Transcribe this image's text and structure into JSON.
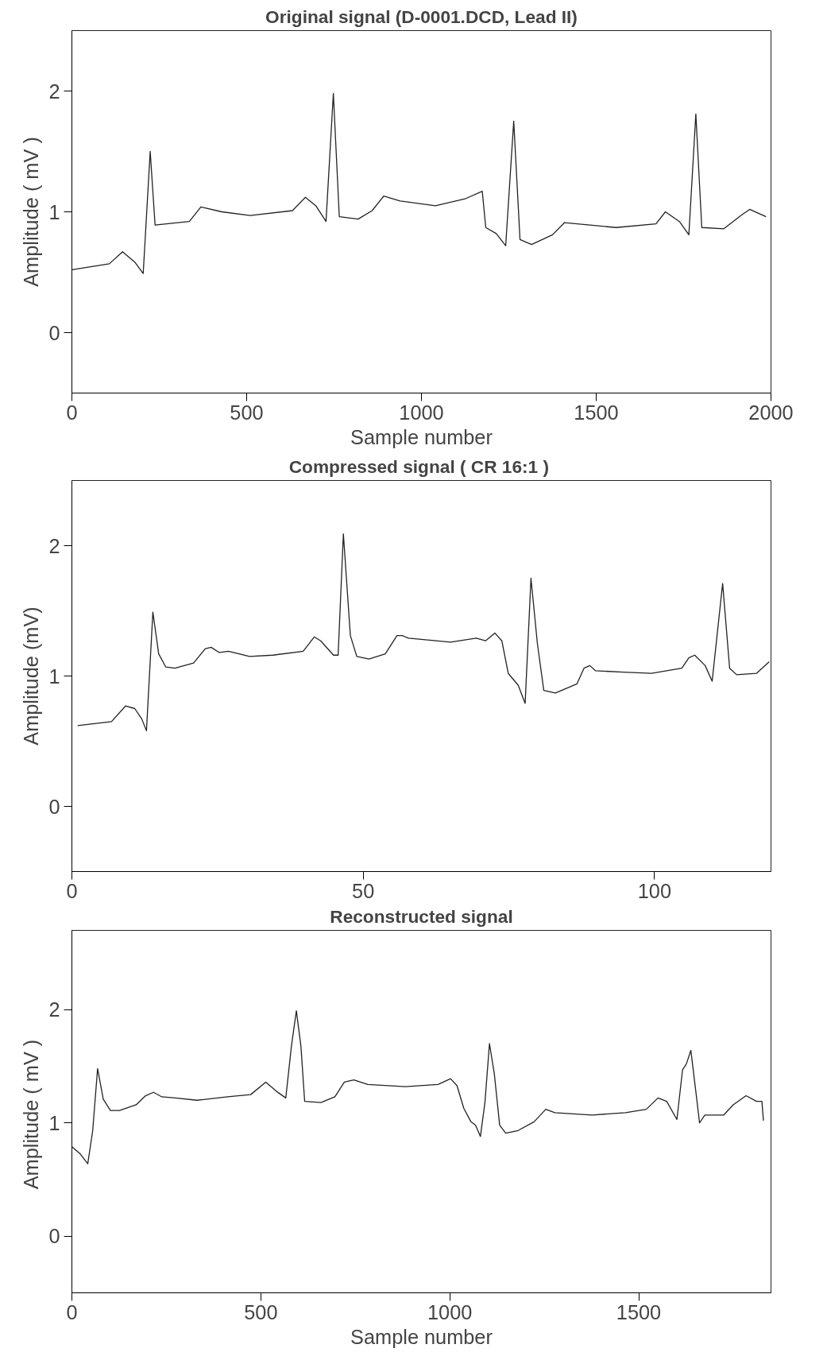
{
  "chart_data": [
    {
      "type": "line",
      "title": "Original signal (D-0001.DCD, Lead II)",
      "xlabel": "Sample number",
      "ylabel": "Amplitude ( mV )",
      "xlim": [
        0,
        2000
      ],
      "xticks": [
        0,
        500,
        1000,
        1500,
        2000
      ],
      "ylim": [
        -0.5,
        2.5
      ],
      "yticks": [
        0,
        1,
        2
      ],
      "grid": false,
      "series": [
        {
          "color": "#222222",
          "x": [
            0,
            107,
            145,
            181,
            204,
            224,
            238,
            336,
            369,
            429,
            510,
            631,
            668,
            698,
            727,
            748,
            765,
            819,
            859,
            892,
            939,
            1040,
            1127,
            1174,
            1184,
            1214,
            1241,
            1264,
            1282,
            1315,
            1375,
            1409,
            1557,
            1671,
            1698,
            1738,
            1765,
            1785,
            1802,
            1865,
            1919,
            1939,
            1986
          ],
          "values": [
            0.52,
            0.57,
            0.67,
            0.58,
            0.49,
            1.5,
            0.89,
            0.92,
            1.04,
            1.0,
            0.97,
            1.01,
            1.12,
            1.05,
            0.92,
            1.98,
            0.96,
            0.94,
            1.01,
            1.13,
            1.09,
            1.05,
            1.11,
            1.17,
            0.87,
            0.82,
            0.72,
            1.75,
            0.77,
            0.73,
            0.81,
            0.91,
            0.87,
            0.9,
            1.0,
            0.92,
            0.81,
            1.81,
            0.87,
            0.86,
            0.98,
            1.02,
            0.96
          ]
        }
      ]
    },
    {
      "type": "line",
      "title": "Compressed signal  ( CR 16:1 )",
      "ylabel": "Amplitude (mV)",
      "xlim": [
        0,
        120
      ],
      "xticks": [
        0,
        50,
        100
      ],
      "ylim": [
        -0.5,
        2.5
      ],
      "yticks": [
        0,
        1,
        2
      ],
      "grid": false,
      "series": [
        {
          "color": "#222222",
          "x": [
            1,
            6.8,
            9.2,
            10.8,
            12,
            12.8,
            13.9,
            14.9,
            16.1,
            17.7,
            20.9,
            22.9,
            23.9,
            25.3,
            26.9,
            30.5,
            34.5,
            39.7,
            41.6,
            42.7,
            44.9,
            45.7,
            46.6,
            47.8,
            48.9,
            51,
            53.8,
            55.8,
            56.7,
            57.8,
            65,
            69.4,
            71,
            72.6,
            73.8,
            74.9,
            76.6,
            77.8,
            78.8,
            79.9,
            81,
            83,
            86.7,
            87.9,
            88.9,
            89.9,
            94.7,
            99.5,
            104.7,
            105.9,
            106.9,
            108.7,
            109.9,
            111.7,
            112.9,
            114.1,
            117.5,
            119.7
          ],
          "values": [
            0.62,
            0.65,
            0.77,
            0.75,
            0.67,
            0.58,
            1.49,
            1.17,
            1.07,
            1.06,
            1.1,
            1.21,
            1.22,
            1.18,
            1.19,
            1.15,
            1.16,
            1.19,
            1.3,
            1.27,
            1.16,
            1.16,
            2.09,
            1.31,
            1.15,
            1.13,
            1.17,
            1.31,
            1.31,
            1.29,
            1.26,
            1.29,
            1.27,
            1.33,
            1.27,
            1.02,
            0.93,
            0.79,
            1.75,
            1.25,
            0.89,
            0.87,
            0.94,
            1.06,
            1.08,
            1.04,
            1.03,
            1.02,
            1.06,
            1.14,
            1.16,
            1.08,
            0.96,
            1.71,
            1.06,
            1.01,
            1.02,
            1.11
          ]
        }
      ]
    },
    {
      "type": "line",
      "title": "Reconstructed signal",
      "xlabel": "Sample number",
      "ylabel": "Amplitude  ( mV )",
      "xlim": [
        0,
        1850
      ],
      "xticks": [
        0,
        500,
        1000,
        1500
      ],
      "ylim": [
        -0.5,
        2.7
      ],
      "yticks": [
        0,
        1,
        2
      ],
      "grid": false,
      "series": [
        {
          "color": "#222222",
          "x": [
            0,
            21,
            42,
            55,
            68,
            83,
            102,
            126,
            170,
            195,
            216,
            238,
            275,
            331,
            412,
            473,
            513,
            541,
            566,
            581,
            594,
            606,
            616,
            659,
            696,
            721,
            746,
            783,
            882,
            969,
            1002,
            1019,
            1037,
            1056,
            1068,
            1081,
            1093,
            1105,
            1118,
            1132,
            1148,
            1179,
            1223,
            1254,
            1278,
            1377,
            1465,
            1520,
            1551,
            1574,
            1601,
            1616,
            1626,
            1638,
            1651,
            1661,
            1675,
            1725,
            1750,
            1784,
            1812,
            1826,
            1830
          ],
          "values": [
            0.79,
            0.73,
            0.64,
            0.93,
            1.48,
            1.21,
            1.11,
            1.11,
            1.16,
            1.24,
            1.27,
            1.23,
            1.22,
            1.2,
            1.23,
            1.25,
            1.36,
            1.28,
            1.22,
            1.68,
            1.99,
            1.68,
            1.19,
            1.18,
            1.23,
            1.36,
            1.38,
            1.34,
            1.32,
            1.34,
            1.39,
            1.33,
            1.13,
            1.01,
            0.98,
            0.88,
            1.18,
            1.7,
            1.43,
            0.98,
            0.91,
            0.93,
            1.01,
            1.12,
            1.09,
            1.07,
            1.09,
            1.12,
            1.22,
            1.19,
            1.03,
            1.47,
            1.52,
            1.64,
            1.28,
            1.0,
            1.07,
            1.07,
            1.16,
            1.24,
            1.19,
            1.19,
            1.02
          ]
        }
      ]
    }
  ]
}
